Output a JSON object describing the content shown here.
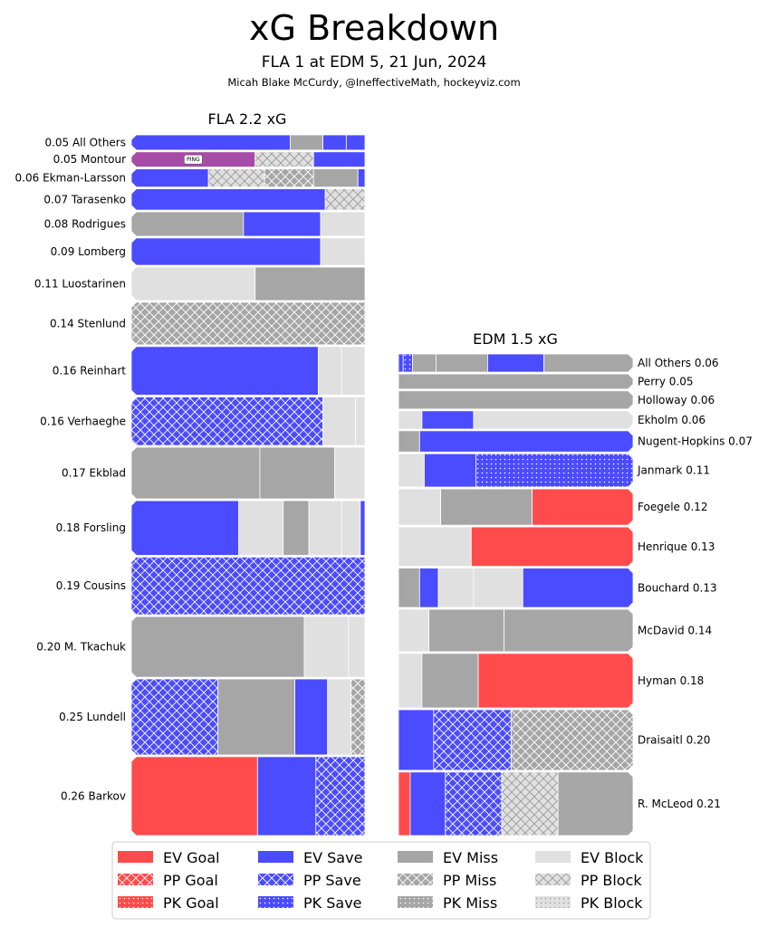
{
  "chart_data": {
    "type": "bar",
    "title": "xG Breakdown",
    "subtitle": "FLA 1 at EDM 5, 21 Jun, 2024",
    "credit": "Micah Blake McCurdy, @IneffectiveMath, hockeyviz.com",
    "colors": {
      "goal": "#ff4b4b",
      "save": "#4b4bff",
      "miss": "#a6a6a6",
      "block": "#e0e0e0",
      "hatch_light": "#ffffff",
      "hatch_dark": "#9a9a9a",
      "ping": "#a64ba6",
      "divider": "#ffffff"
    },
    "teams": [
      {
        "id": "fla",
        "label": "FLA 2.2 xG",
        "side": "left",
        "players": [
          {
            "label": "0.05 All Others",
            "xg": 0.05,
            "segs": [
              [
                "EV Save",
                0.68
              ],
              [
                "EV Miss",
                0.14
              ],
              [
                "EV Save",
                0.1
              ],
              [
                "EV Save",
                0.08
              ]
            ]
          },
          {
            "label": "0.05 Montour",
            "xg": 0.05,
            "tag": "PING",
            "segs": [
              [
                "PING",
                0.53
              ],
              [
                "PP Block",
                0.25
              ],
              [
                "EV Save",
                0.22
              ]
            ]
          },
          {
            "label": "0.06 Ekman-Larsson",
            "xg": 0.06,
            "segs": [
              [
                "EV Save",
                0.33
              ],
              [
                "PP Block",
                0.24
              ],
              [
                "PP Miss",
                0.21
              ],
              [
                "EV Miss",
                0.19
              ],
              [
                "EV Save",
                0.03
              ]
            ]
          },
          {
            "label": "0.07 Tarasenko",
            "xg": 0.07,
            "segs": [
              [
                "EV Save",
                0.83
              ],
              [
                "PP Block",
                0.17
              ]
            ]
          },
          {
            "label": "0.08 Rodrigues",
            "xg": 0.08,
            "segs": [
              [
                "EV Miss",
                0.48
              ],
              [
                "EV Save",
                0.33
              ],
              [
                "EV Block",
                0.19
              ]
            ]
          },
          {
            "label": "0.09 Lomberg",
            "xg": 0.09,
            "segs": [
              [
                "EV Save",
                0.81
              ],
              [
                "EV Block",
                0.19
              ]
            ]
          },
          {
            "label": "0.11 Luostarinen",
            "xg": 0.11,
            "segs": [
              [
                "EV Block",
                0.53
              ],
              [
                "EV Miss",
                0.47
              ]
            ]
          },
          {
            "label": "0.14 Stenlund",
            "xg": 0.14,
            "segs": [
              [
                "PP Miss",
                1
              ]
            ]
          },
          {
            "label": "0.16 Reinhart",
            "xg": 0.16,
            "segs": [
              [
                "EV Save",
                0.8
              ],
              [
                "EV Block",
                0.1
              ],
              [
                "EV Block",
                0.1
              ]
            ]
          },
          {
            "label": "0.16 Verhaeghe",
            "xg": 0.16,
            "segs": [
              [
                "PP Save",
                0.82
              ],
              [
                "EV Block",
                0.14
              ],
              [
                "EV Block",
                0.04
              ]
            ]
          },
          {
            "label": "0.17 Ekblad",
            "xg": 0.17,
            "segs": [
              [
                "EV Miss",
                0.55
              ],
              [
                "EV Miss",
                0.32
              ],
              [
                "EV Block",
                0.13
              ]
            ]
          },
          {
            "label": "0.18 Forsling",
            "xg": 0.18,
            "segs": [
              [
                "EV Save",
                0.46
              ],
              [
                "EV Block",
                0.19
              ],
              [
                "EV Miss",
                0.11
              ],
              [
                "EV Block",
                0.14
              ],
              [
                "EV Block",
                0.08
              ],
              [
                "EV Save",
                0.02
              ]
            ]
          },
          {
            "label": "0.19 Cousins",
            "xg": 0.19,
            "segs": [
              [
                "PP Save",
                1
              ]
            ]
          },
          {
            "label": "0.20 M. Tkachuk",
            "xg": 0.2,
            "segs": [
              [
                "EV Miss",
                0.74
              ],
              [
                "EV Block",
                0.19
              ],
              [
                "EV Block",
                0.07
              ]
            ]
          },
          {
            "label": "0.25 Lundell",
            "xg": 0.25,
            "segs": [
              [
                "PP Save",
                0.37
              ],
              [
                "EV Miss",
                0.33
              ],
              [
                "EV Save",
                0.14
              ],
              [
                "EV Block",
                0.1
              ],
              [
                "PP Miss",
                0.06
              ]
            ]
          },
          {
            "label": "0.26 Barkov",
            "xg": 0.26,
            "segs": [
              [
                "EV Goal",
                0.54
              ],
              [
                "EV Save",
                0.25
              ],
              [
                "PP Save",
                0.21
              ]
            ]
          }
        ]
      },
      {
        "id": "edm",
        "label": "EDM 1.5 xG",
        "side": "right",
        "players": [
          {
            "label": "All Others 0.06",
            "xg": 0.06,
            "segs": [
              [
                "EV Save",
                0.02
              ],
              [
                "PK Save",
                0.04
              ],
              [
                "EV Miss",
                0.1
              ],
              [
                "EV Miss",
                0.22
              ],
              [
                "EV Save",
                0.24
              ],
              [
                "EV Miss",
                0.38
              ]
            ]
          },
          {
            "label": "Perry 0.05",
            "xg": 0.05,
            "segs": [
              [
                "EV Miss",
                1
              ]
            ]
          },
          {
            "label": "Holloway 0.06",
            "xg": 0.06,
            "segs": [
              [
                "EV Miss",
                1
              ]
            ]
          },
          {
            "label": "Ekholm 0.06",
            "xg": 0.06,
            "segs": [
              [
                "EV Block",
                0.1
              ],
              [
                "EV Save",
                0.22
              ],
              [
                "EV Block",
                0.68
              ]
            ]
          },
          {
            "label": "Nugent-Hopkins 0.07",
            "xg": 0.07,
            "segs": [
              [
                "EV Miss",
                0.09
              ],
              [
                "EV Save",
                0.91
              ]
            ]
          },
          {
            "label": "Janmark 0.11",
            "xg": 0.11,
            "segs": [
              [
                "EV Block",
                0.11
              ],
              [
                "EV Save",
                0.22
              ],
              [
                "PK Save",
                0.67
              ]
            ]
          },
          {
            "label": "Foegele 0.12",
            "xg": 0.12,
            "segs": [
              [
                "EV Block",
                0.18
              ],
              [
                "EV Miss",
                0.39
              ],
              [
                "EV Goal",
                0.43
              ]
            ]
          },
          {
            "label": "Henrique 0.13",
            "xg": 0.13,
            "segs": [
              [
                "EV Block",
                0.31
              ],
              [
                "EV Goal",
                0.69
              ]
            ]
          },
          {
            "label": "Bouchard 0.13",
            "xg": 0.13,
            "segs": [
              [
                "EV Miss",
                0.09
              ],
              [
                "EV Save",
                0.08
              ],
              [
                "EV Block",
                0.15
              ],
              [
                "EV Block",
                0.21
              ],
              [
                "EV Save",
                0.47
              ]
            ]
          },
          {
            "label": "McDavid 0.14",
            "xg": 0.14,
            "segs": [
              [
                "EV Block",
                0.13
              ],
              [
                "EV Miss",
                0.32
              ],
              [
                "EV Miss",
                0.55
              ]
            ]
          },
          {
            "label": "Hyman 0.18",
            "xg": 0.18,
            "segs": [
              [
                "EV Block",
                0.1
              ],
              [
                "EV Miss",
                0.24
              ],
              [
                "EV Goal",
                0.66
              ]
            ]
          },
          {
            "label": "Draisaitl 0.20",
            "xg": 0.2,
            "segs": [
              [
                "EV Save",
                0.15
              ],
              [
                "PP Save",
                0.33
              ],
              [
                "PP Miss",
                0.52
              ]
            ]
          },
          {
            "label": "R. McLeod 0.21",
            "xg": 0.21,
            "segs": [
              [
                "EV Goal",
                0.05
              ],
              [
                "EV Save",
                0.15
              ],
              [
                "PP Save",
                0.24
              ],
              [
                "PP Block",
                0.24
              ],
              [
                "EV Miss",
                0.32
              ]
            ]
          }
        ]
      }
    ],
    "legend": [
      {
        "label": "EV Goal",
        "kind": "EV Goal"
      },
      {
        "label": "PP Goal",
        "kind": "PP Goal"
      },
      {
        "label": "PK Goal",
        "kind": "PK Goal"
      },
      {
        "label": "EV Save",
        "kind": "EV Save"
      },
      {
        "label": "PP Save",
        "kind": "PP Save"
      },
      {
        "label": "PK Save",
        "kind": "PK Save"
      },
      {
        "label": "EV Miss",
        "kind": "EV Miss"
      },
      {
        "label": "PP Miss",
        "kind": "PP Miss"
      },
      {
        "label": "PK Miss",
        "kind": "PK Miss"
      },
      {
        "label": "EV Block",
        "kind": "EV Block"
      },
      {
        "label": "PP Block",
        "kind": "PP Block"
      },
      {
        "label": "PK Block",
        "kind": "PK Block"
      }
    ]
  }
}
